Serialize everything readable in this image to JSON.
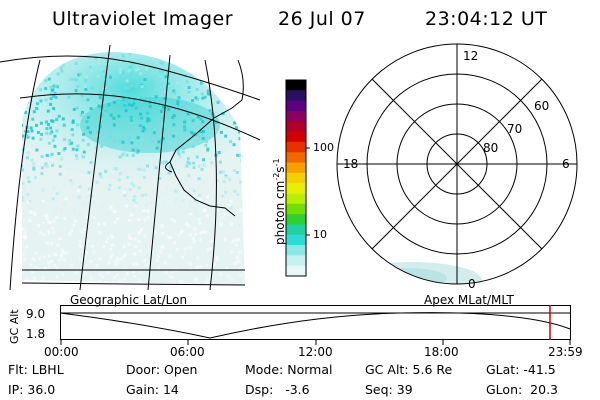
{
  "header": {
    "instrument": "Ultraviolet Imager",
    "date": "26 Jul 07",
    "time": "23:04:12 UT"
  },
  "colorbar": {
    "unit": "photon cm",
    "unit_sup1": "-2",
    "unit_s": "s",
    "unit_sup2": "-1",
    "ticks": [
      "100",
      "10"
    ],
    "colors": [
      "#000000",
      "#2a1060",
      "#5a0080",
      "#8a0060",
      "#b0002a",
      "#d40000",
      "#e83000",
      "#f06800",
      "#f6a000",
      "#f4d000",
      "#e8f000",
      "#b8f000",
      "#70e000",
      "#30d030",
      "#20d0a0",
      "#30d8d8",
      "#8ce8e8",
      "#c8f0f0",
      "#e8f8f8"
    ]
  },
  "left_map": {
    "caption": "Geographic Lat/Lon"
  },
  "right_polar": {
    "caption": "Apex MLat/MLT",
    "mlt_labels": {
      "top": "12",
      "left": "18",
      "right": "6",
      "bottom": "0"
    },
    "lat_labels": [
      "60",
      "70",
      "80"
    ]
  },
  "altitude_plot": {
    "ylabel": "GC Alt",
    "yticks": [
      "9.0",
      "1.8"
    ],
    "xticks": [
      "00:00",
      "06:00",
      "12:00",
      "18:00",
      "23:59"
    ],
    "current_marker_color": "#d00000"
  },
  "footer": {
    "row1": [
      {
        "label": "Flt:",
        "value": "LBHL"
      },
      {
        "label": "Door:",
        "value": "Open"
      },
      {
        "label": "Mode:",
        "value": "Normal"
      },
      {
        "label": "GC Alt:",
        "value": "5.6 Re"
      },
      {
        "label": "GLat:",
        "value": "-41.5"
      }
    ],
    "row2": [
      {
        "label": "IP:",
        "value": "36.0"
      },
      {
        "label": "Gain:",
        "value": "14"
      },
      {
        "label": "Dsp:",
        "value": "-3.6"
      },
      {
        "label": "Seq:",
        "value": "39"
      },
      {
        "label": "GLon:",
        "value": "20.3"
      }
    ]
  }
}
